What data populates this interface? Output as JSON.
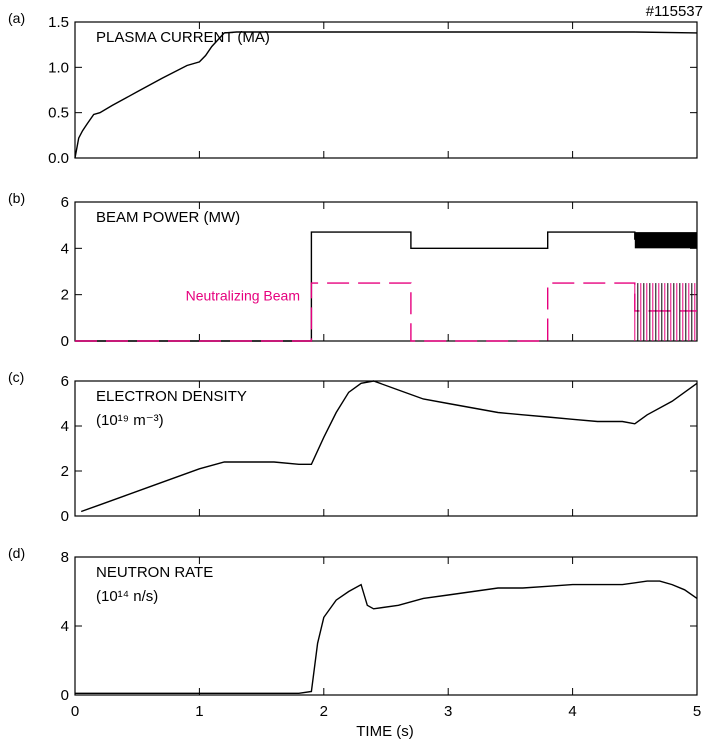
{
  "shot_label": "#115537",
  "chart_data": [
    {
      "type": "line",
      "panel_letter": "(a)",
      "title": "PLASMA CURRENT (MA)",
      "title_line2": "",
      "ylim": [
        0,
        1.5
      ],
      "yticks": [
        "0.0",
        "0.5",
        "1.0",
        "1.5"
      ],
      "xlim": [
        0,
        5
      ],
      "series": [
        {
          "color": "#000000",
          "x": [
            0,
            0.03,
            0.06,
            0.1,
            0.15,
            0.2,
            0.3,
            0.5,
            0.7,
            0.9,
            1.0,
            1.05,
            1.1,
            1.2,
            1.3,
            1.5,
            2.0,
            2.5,
            3.0,
            3.5,
            4.0,
            4.5,
            5.0
          ],
          "y": [
            0.0,
            0.22,
            0.3,
            0.38,
            0.48,
            0.5,
            0.58,
            0.73,
            0.88,
            1.02,
            1.06,
            1.13,
            1.23,
            1.38,
            1.39,
            1.39,
            1.39,
            1.39,
            1.39,
            1.39,
            1.39,
            1.39,
            1.38
          ]
        }
      ]
    },
    {
      "type": "line",
      "panel_letter": "(b)",
      "title": "BEAM POWER (MW)",
      "title_line2": "",
      "ylim": [
        0,
        6
      ],
      "yticks": [
        "0",
        "2",
        "4",
        "6"
      ],
      "xlim": [
        0,
        5
      ],
      "annotation": "Neutralizing Beam",
      "series": [
        {
          "color": "#000000",
          "step": true,
          "x": [
            0,
            1.9,
            1.9,
            2.7,
            2.7,
            3.8,
            3.8,
            4.5,
            4.5,
            5.0
          ],
          "y": [
            0,
            0,
            4.7,
            4.7,
            4.0,
            4.0,
            4.7,
            4.7,
            4.4,
            4.4
          ]
        },
        {
          "color": "#e6007e",
          "dashed": true,
          "step": true,
          "x": [
            0,
            1.9,
            1.9,
            2.7,
            2.7,
            3.8,
            3.8,
            4.5,
            4.5,
            5.0
          ],
          "y": [
            0,
            0,
            2.5,
            2.5,
            0,
            0,
            2.5,
            2.5,
            1.3,
            1.3
          ]
        }
      ]
    },
    {
      "type": "line",
      "panel_letter": "(c)",
      "title": "ELECTRON DENSITY",
      "title_line2": "(10¹⁹ m⁻³)",
      "ylim": [
        0,
        6
      ],
      "yticks": [
        "0",
        "2",
        "4",
        "6"
      ],
      "xlim": [
        0,
        5
      ],
      "series": [
        {
          "color": "#000000",
          "x": [
            0.05,
            0.2,
            0.4,
            0.6,
            0.8,
            1.0,
            1.2,
            1.4,
            1.6,
            1.8,
            1.9,
            2.0,
            2.1,
            2.2,
            2.3,
            2.4,
            2.6,
            2.8,
            3.0,
            3.2,
            3.4,
            3.6,
            3.8,
            4.0,
            4.2,
            4.4,
            4.5,
            4.6,
            4.8,
            5.0
          ],
          "y": [
            0.2,
            0.5,
            0.9,
            1.3,
            1.7,
            2.1,
            2.4,
            2.4,
            2.4,
            2.3,
            2.3,
            3.5,
            4.6,
            5.5,
            5.9,
            6.0,
            5.6,
            5.2,
            5.0,
            4.8,
            4.6,
            4.5,
            4.4,
            4.3,
            4.2,
            4.2,
            4.1,
            4.5,
            5.1,
            5.9
          ]
        }
      ]
    },
    {
      "type": "line",
      "panel_letter": "(d)",
      "title": "NEUTRON RATE",
      "title_line2": "(10¹⁴ n/s)",
      "ylim": [
        0,
        8
      ],
      "yticks": [
        "0",
        "4",
        "8"
      ],
      "xlim": [
        0,
        5
      ],
      "xlabel": "TIME (s)",
      "xticks": [
        "0",
        "1",
        "2",
        "3",
        "4",
        "5"
      ],
      "series": [
        {
          "color": "#000000",
          "x": [
            0,
            0.5,
            1.0,
            1.5,
            1.8,
            1.9,
            1.95,
            2.0,
            2.1,
            2.2,
            2.3,
            2.35,
            2.4,
            2.6,
            2.8,
            3.0,
            3.2,
            3.4,
            3.6,
            3.8,
            4.0,
            4.2,
            4.4,
            4.6,
            4.7,
            4.8,
            4.9,
            5.0
          ],
          "y": [
            0.1,
            0.1,
            0.1,
            0.1,
            0.1,
            0.2,
            3.0,
            4.5,
            5.5,
            6.0,
            6.4,
            5.2,
            5.0,
            5.2,
            5.6,
            5.8,
            6.0,
            6.2,
            6.2,
            6.3,
            6.4,
            6.4,
            6.4,
            6.6,
            6.6,
            6.4,
            6.1,
            5.6
          ]
        }
      ]
    }
  ]
}
